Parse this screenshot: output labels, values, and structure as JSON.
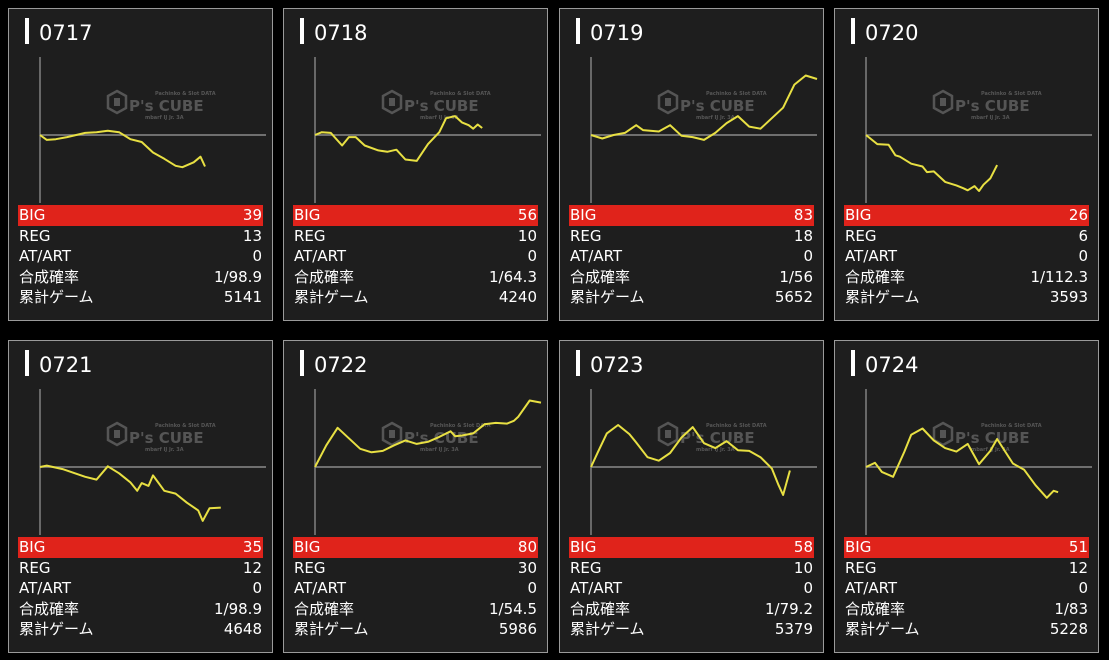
{
  "colors": {
    "background": "#000000",
    "card_bg": "#1e1e1e",
    "card_border": "#9a9a9a",
    "big_row": "#e0231b",
    "line": "#e8e043",
    "baseline": "#8a8a8a",
    "axis": "#9a9a9a"
  },
  "watermark": {
    "small": "Pachinko & Slot DATA",
    "brand": "P's CUBE",
    "sub": "mbarf IJ Jr. 3A"
  },
  "labels": {
    "big": "BIG",
    "reg": "REG",
    "at": "AT/ART",
    "rate": "合成確率",
    "games": "累計ゲーム"
  },
  "cards": [
    {
      "title": "0717",
      "big": "39",
      "reg": "13",
      "at": "0",
      "rate": "1/98.9",
      "games": "5141"
    },
    {
      "title": "0718",
      "big": "56",
      "reg": "10",
      "at": "0",
      "rate": "1/64.3",
      "games": "4240"
    },
    {
      "title": "0719",
      "big": "83",
      "reg": "18",
      "at": "0",
      "rate": "1/56",
      "games": "5652"
    },
    {
      "title": "0720",
      "big": "26",
      "reg": "6",
      "at": "0",
      "rate": "1/112.3",
      "games": "3593"
    },
    {
      "title": "0721",
      "big": "35",
      "reg": "12",
      "at": "0",
      "rate": "1/98.9",
      "games": "4648"
    },
    {
      "title": "0722",
      "big": "80",
      "reg": "30",
      "at": "0",
      "rate": "1/54.5",
      "games": "5986"
    },
    {
      "title": "0723",
      "big": "58",
      "reg": "10",
      "at": "0",
      "rate": "1/79.2",
      "games": "5379"
    },
    {
      "title": "0724",
      "big": "51",
      "reg": "12",
      "at": "0",
      "rate": "1/83",
      "games": "5228"
    }
  ],
  "chart_data": [
    {
      "type": "line",
      "title": "0717",
      "ylim": [
        -1,
        1
      ],
      "grid": false,
      "x": [
        0,
        0.03,
        0.07,
        0.12,
        0.2,
        0.25,
        0.3,
        0.35,
        0.4,
        0.45,
        0.5,
        0.55,
        0.6,
        0.63,
        0.68,
        0.71,
        0.73
      ],
      "y": [
        0,
        -0.07,
        -0.06,
        -0.03,
        0.03,
        0.04,
        0.06,
        0.04,
        -0.06,
        -0.1,
        -0.25,
        -0.34,
        -0.44,
        -0.46,
        -0.39,
        -0.31,
        -0.45
      ]
    },
    {
      "type": "line",
      "title": "0718",
      "ylim": [
        -1,
        1
      ],
      "grid": false,
      "x": [
        0,
        0.03,
        0.07,
        0.12,
        0.15,
        0.18,
        0.22,
        0.28,
        0.32,
        0.36,
        0.4,
        0.45,
        0.5,
        0.55,
        0.58,
        0.62,
        0.65,
        0.68,
        0.7,
        0.72,
        0.74
      ],
      "y": [
        0,
        0.04,
        0.03,
        -0.15,
        -0.03,
        -0.03,
        -0.15,
        -0.22,
        -0.24,
        -0.21,
        -0.35,
        -0.37,
        -0.13,
        0.04,
        0.24,
        0.27,
        0.18,
        0.14,
        0.09,
        0.15,
        0.1
      ]
    },
    {
      "type": "line",
      "title": "0719",
      "ylim": [
        -1,
        1
      ],
      "grid": false,
      "x": [
        0,
        0.05,
        0.1,
        0.15,
        0.2,
        0.23,
        0.3,
        0.35,
        0.4,
        0.45,
        0.5,
        0.55,
        0.6,
        0.65,
        0.7,
        0.75,
        0.8,
        0.85,
        0.9,
        0.95,
        1.0
      ],
      "y": [
        0,
        -0.05,
        0.0,
        0.03,
        0.14,
        0.07,
        0.05,
        0.14,
        -0.01,
        -0.03,
        -0.07,
        0.03,
        0.17,
        0.27,
        0.12,
        0.09,
        0.24,
        0.39,
        0.72,
        0.85,
        0.8
      ]
    },
    {
      "type": "line",
      "title": "0720",
      "ylim": [
        -1,
        1
      ],
      "grid": false,
      "x": [
        0,
        0.05,
        0.1,
        0.13,
        0.15,
        0.2,
        0.25,
        0.27,
        0.3,
        0.35,
        0.4,
        0.43,
        0.45,
        0.48,
        0.5,
        0.52,
        0.55,
        0.58
      ],
      "y": [
        0,
        -0.13,
        -0.14,
        -0.29,
        -0.31,
        -0.41,
        -0.45,
        -0.53,
        -0.52,
        -0.67,
        -0.72,
        -0.76,
        -0.79,
        -0.73,
        -0.8,
        -0.71,
        -0.62,
        -0.43
      ]
    },
    {
      "type": "line",
      "title": "0721",
      "ylim": [
        -1,
        1
      ],
      "grid": false,
      "x": [
        0,
        0.03,
        0.1,
        0.2,
        0.25,
        0.3,
        0.35,
        0.4,
        0.43,
        0.45,
        0.48,
        0.5,
        0.55,
        0.6,
        0.65,
        0.7,
        0.72,
        0.75,
        0.8
      ],
      "y": [
        0,
        0.02,
        -0.03,
        -0.14,
        -0.18,
        0.01,
        -0.09,
        -0.22,
        -0.34,
        -0.23,
        -0.27,
        -0.12,
        -0.34,
        -0.38,
        -0.51,
        -0.62,
        -0.77,
        -0.59,
        -0.58
      ]
    },
    {
      "type": "line",
      "title": "0722",
      "ylim": [
        -1,
        1
      ],
      "grid": false,
      "x": [
        0,
        0.05,
        0.1,
        0.15,
        0.2,
        0.25,
        0.3,
        0.35,
        0.4,
        0.45,
        0.5,
        0.55,
        0.6,
        0.62,
        0.65,
        0.7,
        0.75,
        0.8,
        0.85,
        0.88,
        0.9,
        0.95,
        1.0
      ],
      "y": [
        0,
        0.31,
        0.56,
        0.41,
        0.26,
        0.21,
        0.23,
        0.31,
        0.38,
        0.33,
        0.36,
        0.43,
        0.51,
        0.44,
        0.45,
        0.48,
        0.61,
        0.63,
        0.62,
        0.66,
        0.72,
        0.95,
        0.92
      ]
    },
    {
      "type": "line",
      "title": "0723",
      "ylim": [
        -1,
        1
      ],
      "grid": false,
      "x": [
        0,
        0.03,
        0.07,
        0.12,
        0.17,
        0.2,
        0.25,
        0.3,
        0.35,
        0.4,
        0.45,
        0.5,
        0.55,
        0.6,
        0.65,
        0.7,
        0.75,
        0.8,
        0.83,
        0.85,
        0.88
      ],
      "y": [
        0,
        0.21,
        0.48,
        0.6,
        0.47,
        0.35,
        0.14,
        0.09,
        0.2,
        0.42,
        0.57,
        0.34,
        0.27,
        0.37,
        0.24,
        0.23,
        0.14,
        -0.02,
        -0.26,
        -0.4,
        -0.05
      ]
    },
    {
      "type": "line",
      "title": "0724",
      "ylim": [
        -1,
        1
      ],
      "grid": false,
      "x": [
        0,
        0.04,
        0.07,
        0.12,
        0.17,
        0.2,
        0.25,
        0.3,
        0.35,
        0.4,
        0.45,
        0.5,
        0.55,
        0.58,
        0.6,
        0.65,
        0.7,
        0.75,
        0.8,
        0.83,
        0.85
      ],
      "y": [
        0,
        0.06,
        -0.07,
        -0.14,
        0.22,
        0.46,
        0.55,
        0.38,
        0.27,
        0.22,
        0.33,
        0.04,
        0.23,
        0.4,
        0.3,
        0.05,
        -0.04,
        -0.26,
        -0.44,
        -0.34,
        -0.36
      ]
    }
  ]
}
